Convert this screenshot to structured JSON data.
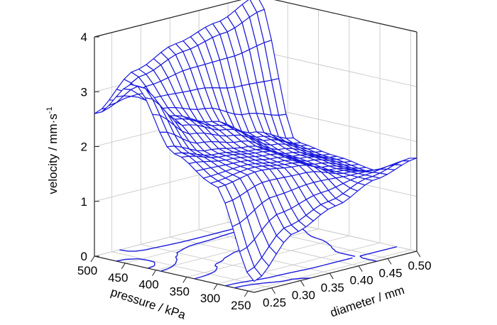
{
  "chart_data": {
    "type": "surface",
    "title": "",
    "zlabel": "velocity / mm·s",
    "zlabel_superscript": "-1",
    "xlabel": "diameter / mm",
    "ylabel": "pressure / kPa",
    "x_ticks": [
      "0.25",
      "0.30",
      "0.35",
      "0.40",
      "0.45",
      "0.50"
    ],
    "y_ticks": [
      "500",
      "450",
      "400",
      "350",
      "300",
      "250"
    ],
    "z_ticks": [
      "0",
      "1",
      "2",
      "3",
      "4"
    ],
    "xlim": [
      0.22,
      0.5
    ],
    "ylim": [
      240,
      500
    ],
    "zlim": [
      0,
      4
    ],
    "grid": true,
    "surface_color": "#1a1adb",
    "contour_color": "#1a1adb",
    "diameter": [
      0.22,
      0.29,
      0.36,
      0.43,
      0.5
    ],
    "pressure": [
      240,
      305,
      370,
      435,
      500
    ],
    "velocity": [
      [
        0.2,
        0.9,
        1.2,
        1.5,
        1.7
      ],
      [
        1.8,
        1.9,
        1.8,
        1.5,
        1.3
      ],
      [
        2.2,
        2.0,
        1.9,
        1.6,
        1.4
      ],
      [
        3.3,
        2.5,
        2.2,
        1.8,
        1.5
      ],
      [
        2.6,
        3.2,
        3.5,
        3.7,
        4.0
      ]
    ]
  }
}
